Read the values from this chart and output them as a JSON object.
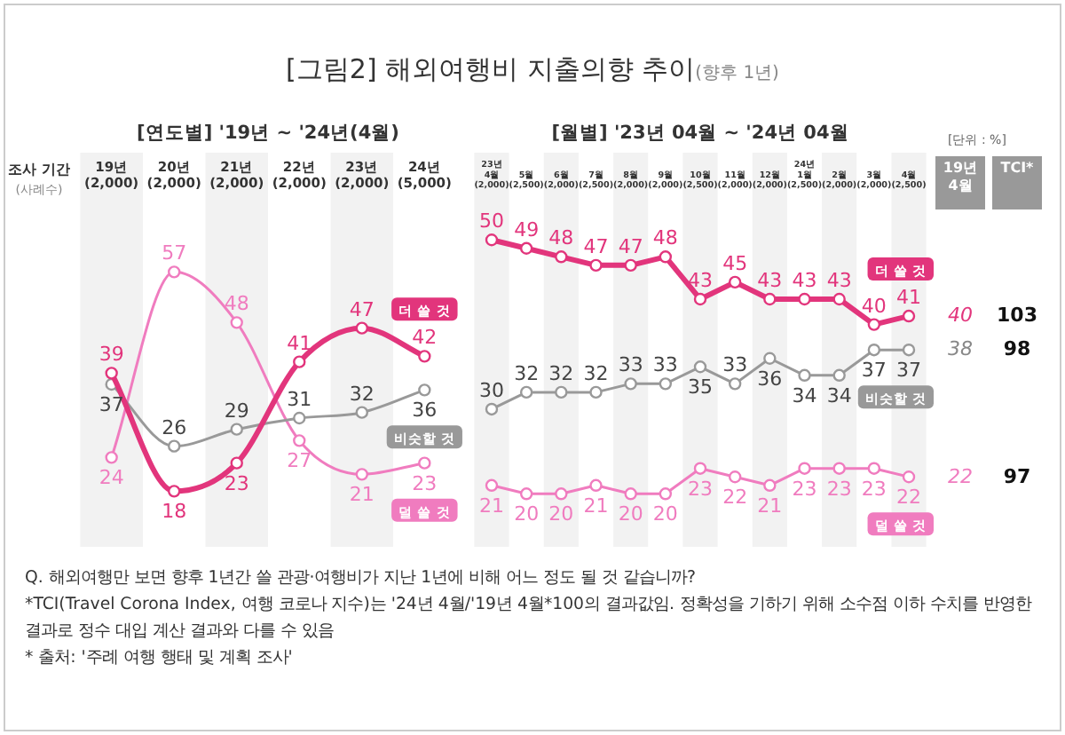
{
  "chart_data": [
    {
      "type": "line",
      "title": "[그림2] 해외여행비 지출의향 추이(향후 1년)",
      "subtitle": "[연도별] '19년 ~ '24년(4월)",
      "categories": [
        "19년\n(2,000)",
        "20년\n(2,000)",
        "21년\n(2,000)",
        "22년\n(2,000)",
        "23년\n(2,000)",
        "24년\n(5,000)"
      ],
      "series": [
        {
          "name": "더 쓸 것",
          "color": "#e2357c",
          "values": [
            39,
            18,
            23,
            41,
            47,
            42
          ]
        },
        {
          "name": "비슷할 것",
          "color": "#999999",
          "values": [
            37,
            26,
            29,
            31,
            32,
            36
          ]
        },
        {
          "name": "덜 쓸 것",
          "color": "#f07cbf",
          "values": [
            24,
            57,
            48,
            27,
            21,
            23
          ]
        }
      ],
      "data_labels": true,
      "marker": "circle",
      "legend": false,
      "grid": false,
      "tick_labels": "x",
      "annotations": [
        "조사 기간",
        "(사례수)"
      ]
    },
    {
      "type": "line",
      "title": "[월별] '23년 04월 ~ '24년 04월",
      "categories": [
        "23년\n4월\n(2,000)",
        "5월\n(2,500)",
        "6월\n(2,000)",
        "7월\n(2,500)",
        "8월\n(2,000)",
        "9월\n(2,000)",
        "10월\n(2,500)",
        "11월\n(2,000)",
        "12월\n(2,000)",
        "24년\n1월\n(2,500)",
        "2월\n(2,000)",
        "3월\n(2,000)",
        "4월\n(2,500)"
      ],
      "series": [
        {
          "name": "더 쓸 것",
          "color": "#e2357c",
          "values": [
            50,
            49,
            48,
            47,
            47,
            48,
            43,
            45,
            43,
            43,
            43,
            40,
            41
          ]
        },
        {
          "name": "비슷할 것",
          "color": "#999999",
          "values": [
            30,
            32,
            32,
            32,
            33,
            33,
            35,
            33,
            36,
            34,
            34,
            37,
            37
          ]
        },
        {
          "name": "덜 쓸 것",
          "color": "#f07cbf",
          "values": [
            21,
            20,
            20,
            21,
            20,
            20,
            23,
            22,
            21,
            23,
            23,
            23,
            22
          ]
        }
      ],
      "data_labels": true,
      "marker": "circle",
      "legend": false,
      "grid": false,
      "tick_labels": "x",
      "annotations": [
        "[단위 : %]",
        "19년 4월",
        "TCI*",
        "40",
        "38",
        "22",
        "103",
        "98",
        "97",
        "Q. 해외여행만 보면 향후 1년간 쓸 관광·여행비가 지난 1년에 비해 어느 정도 될 것 같습니까?",
        "*TCI(Travel Corona Index, 여행 코로나 지수)는 '24년 4월/'19년 4월*100의 결과값임. 정확성을 기하기 위해 소수점 이하 수치를 반영한 결과로 정수 대입 계산 결과와 다를 수 있음",
        "* 출처: '주례 여행 행태 및 계획 조사'"
      ]
    }
  ]
}
